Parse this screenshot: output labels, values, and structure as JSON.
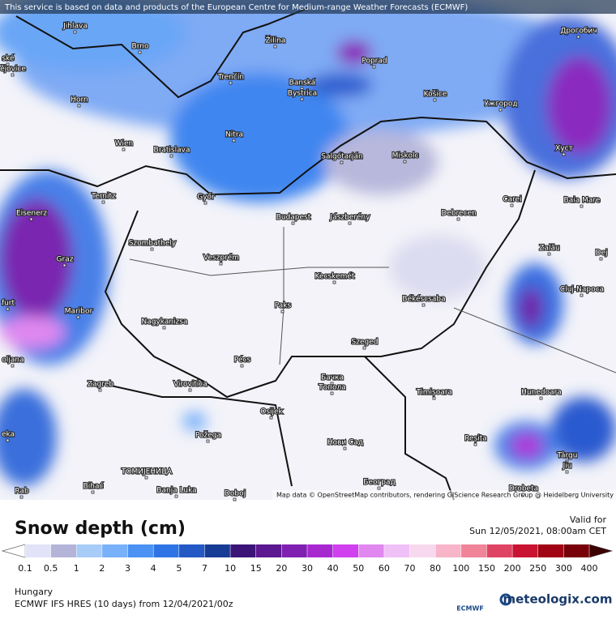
{
  "header": {
    "notice": "This service is based on data and products of the European Centre for Medium-range Weather Forecasts (ECMWF)"
  },
  "map": {
    "attribution": "Map data © OpenStreetMap contributors, rendering GIScience Research Group @ Heidelberg University",
    "cities": [
      "Jihlava",
      "Brno",
      "Žilina",
      "Poprad",
      "Дрогобич",
      "ské",
      "ějovice",
      "Trenčín",
      "Banská",
      "Bystrica",
      "Horn",
      "Košice",
      "Ужгород",
      "Nitra",
      "Wien",
      "Bratislava",
      "Salgótarján",
      "Miskolc",
      "Хуст",
      "Ternitz",
      "Győr",
      "Carei",
      "Baia Mare",
      "Eisenerz",
      "Budapest",
      "Jászberény",
      "Debrecen",
      "Szombathely",
      "Zalău",
      "Graz",
      "Veszprém",
      "Dej",
      "Kecskemét",
      "Cluj-Napoca",
      "Békéscsaba",
      "Paks",
      "furt",
      "Maribor",
      "Nagykanizsa",
      "Szeged",
      "oljana",
      "Pécs",
      "Zagreb",
      "Virovitica",
      "Бачка",
      "Топола",
      "Timișoara",
      "Hunedoara",
      "Osijek",
      "Požega",
      "eka",
      "Reșita",
      "Нови Сад",
      "Târgu",
      "Jiu",
      "ТОМИЈЕНИЦА",
      "Bihać",
      "Banja Luka",
      "Doboj",
      "Београд",
      "Drobeta",
      "Rab"
    ]
  },
  "legend": {
    "title": "Snow depth (cm)",
    "valid_label": "Valid for",
    "valid_time": "Sun 12/05/2021, 08:00am CET",
    "ticks": [
      0.1,
      0.5,
      1,
      2,
      3,
      4,
      5,
      7,
      10,
      15,
      20,
      30,
      40,
      50,
      60,
      70,
      80,
      100,
      150,
      200,
      250,
      300,
      400
    ],
    "colors": [
      "#e2e2f8",
      "#b4b4d8",
      "#a8ccf8",
      "#78b0fa",
      "#4a92f4",
      "#2f74e4",
      "#2458c4",
      "#173c96",
      "#3c1478",
      "#5c1890",
      "#8020b0",
      "#a828d0",
      "#d040ee",
      "#e088f0",
      "#f0c0f8",
      "#f8d8ee",
      "#f8b4c8",
      "#f08498",
      "#e04464",
      "#c81432",
      "#a00414",
      "#780008"
    ],
    "under_color": "#ffffff",
    "over_color": "#3c0000"
  },
  "footer": {
    "region": "Hungary",
    "model": "ECMWF IFS HRES (10 days) from 12/04/2021/00z",
    "ecmwf_logo": "ECMWF",
    "brand": "meteologix.com"
  }
}
